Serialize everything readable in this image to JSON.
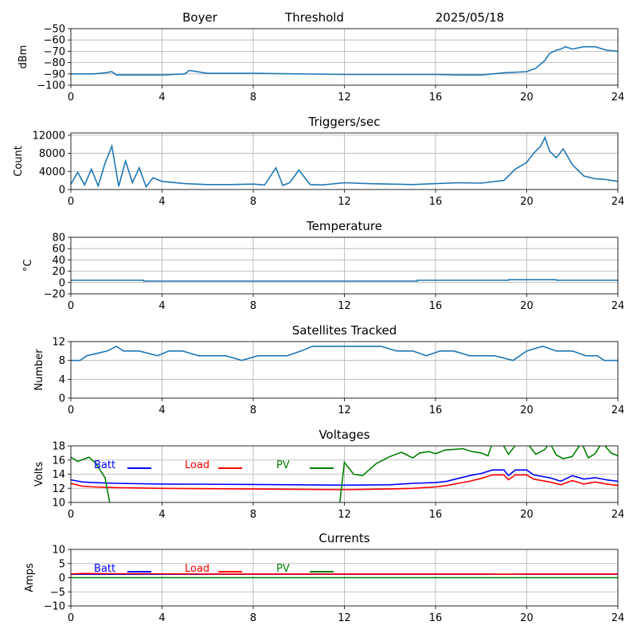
{
  "header": {
    "station": "Boyer",
    "mode": "Threshold",
    "date": "2025/05/18"
  },
  "chart_data": [
    {
      "type": "line",
      "title": "",
      "xlabel": "",
      "ylabel": "dBm",
      "xlim": [
        0,
        24
      ],
      "ylim": [
        -100,
        -50
      ],
      "xticks": [
        0,
        4,
        8,
        12,
        16,
        20,
        24
      ],
      "yticks": [
        -100,
        -90,
        -80,
        -70,
        -60,
        -50
      ],
      "grid": true,
      "series": [
        {
          "color": "#1f77b4",
          "x": [
            0,
            1,
            1.5,
            1.8,
            2,
            3,
            4,
            5,
            5.2,
            6,
            8,
            10,
            12,
            14,
            16,
            17,
            18,
            19,
            20,
            20.4,
            20.8,
            21,
            21.3,
            21.5,
            21.7,
            22,
            22.5,
            23,
            23.5,
            24
          ],
          "y": [
            -90,
            -90,
            -89,
            -88,
            -91,
            -91,
            -91,
            -90,
            -87,
            -89.5,
            -89.5,
            -90,
            -90.5,
            -90.5,
            -90.5,
            -91,
            -91,
            -89,
            -88,
            -85,
            -78,
            -72,
            -69,
            -68,
            -66,
            -68,
            -66,
            -66,
            -69,
            -70
          ]
        }
      ]
    },
    {
      "type": "line",
      "title": "Triggers/sec",
      "xlabel": "",
      "ylabel": "Count",
      "xlim": [
        0,
        24
      ],
      "ylim": [
        0,
        12500
      ],
      "xticks": [
        0,
        4,
        8,
        12,
        16,
        20,
        24
      ],
      "yticks": [
        0,
        4000,
        8000,
        12000
      ],
      "grid": true,
      "series": [
        {
          "color": "#1f77b4",
          "x": [
            0,
            0.3,
            0.6,
            0.9,
            1.2,
            1.5,
            1.8,
            2.1,
            2.4,
            2.7,
            3,
            3.3,
            3.6,
            4,
            5,
            6,
            7,
            8,
            8.5,
            9,
            9.3,
            9.6,
            10,
            10.5,
            11,
            12,
            13,
            14,
            15,
            16,
            17,
            18,
            19,
            19.5,
            20,
            20.3,
            20.6,
            20.8,
            21,
            21.3,
            21.6,
            22,
            22.5,
            23,
            23.5,
            24
          ],
          "y": [
            1200,
            3800,
            1000,
            4500,
            800,
            5800,
            9600,
            700,
            6300,
            1500,
            4800,
            600,
            2600,
            1800,
            1300,
            1100,
            1100,
            1200,
            1000,
            4800,
            900,
            1500,
            4300,
            1100,
            1000,
            1500,
            1300,
            1200,
            1100,
            1300,
            1500,
            1400,
            2000,
            4500,
            6000,
            8000,
            9500,
            11500,
            8500,
            7000,
            9000,
            5500,
            3000,
            2400,
            2200,
            1800
          ]
        }
      ]
    },
    {
      "type": "line",
      "title": "Temperature",
      "xlabel": "",
      "ylabel": "°C",
      "xlim": [
        0,
        24
      ],
      "ylim": [
        -20,
        80
      ],
      "xticks": [
        0,
        4,
        8,
        12,
        16,
        20,
        24
      ],
      "yticks": [
        -20,
        0,
        20,
        40,
        60,
        80
      ],
      "grid": true,
      "series": [
        {
          "color": "#1f77b4",
          "x": [
            0,
            3.2,
            3.2,
            15.2,
            15.2,
            19.2,
            19.2,
            21.3,
            21.3,
            24
          ],
          "y": [
            4,
            4,
            2.5,
            2.5,
            4,
            4,
            5,
            5,
            4,
            4
          ]
        }
      ]
    },
    {
      "type": "line",
      "title": "Satellites Tracked",
      "xlabel": "",
      "ylabel": "Number",
      "xlim": [
        0,
        24
      ],
      "ylim": [
        0,
        12
      ],
      "xticks": [
        0,
        4,
        8,
        12,
        16,
        20,
        24
      ],
      "yticks": [
        0,
        4,
        8,
        12
      ],
      "grid": true,
      "series": [
        {
          "color": "#1f77b4",
          "x": [
            0,
            0.4,
            0.7,
            1.6,
            2,
            2.3,
            3,
            3.8,
            4.3,
            4.9,
            5.6,
            6.2,
            6.8,
            7.5,
            8.2,
            8.8,
            9.5,
            10.1,
            10.6,
            11.3,
            12,
            13,
            13.6,
            14.3,
            15,
            15.6,
            16.2,
            16.8,
            17.5,
            18,
            18.6,
            19.4,
            20,
            20.7,
            21.3,
            22,
            22.6,
            23.1,
            23.4,
            24
          ],
          "y": [
            8,
            8,
            9,
            10,
            11,
            10,
            10,
            9,
            10,
            10,
            9,
            9,
            9,
            8,
            9,
            9,
            9,
            10,
            11,
            11,
            11,
            11,
            11,
            10,
            10,
            9,
            10,
            10,
            9,
            9,
            9,
            8,
            10,
            11,
            10,
            10,
            9,
            9,
            8,
            8
          ]
        }
      ]
    },
    {
      "type": "line",
      "title": "Voltages",
      "xlabel": "",
      "ylabel": "Volts",
      "xlim": [
        0,
        24
      ],
      "ylim": [
        10,
        18
      ],
      "xticks": [
        0,
        4,
        8,
        12,
        16,
        20,
        24
      ],
      "yticks": [
        10,
        12,
        14,
        16,
        18
      ],
      "grid": true,
      "legend": "upper-left",
      "series": [
        {
          "name": "Batt",
          "color": "#0000ff",
          "x": [
            0,
            0.5,
            1,
            2,
            4,
            8,
            12,
            14,
            15,
            16,
            16.5,
            17,
            17.5,
            18,
            18.5,
            19,
            19.2,
            19.5,
            20,
            20.3,
            21,
            21.5,
            22,
            22.5,
            23,
            23.5,
            24
          ],
          "y": [
            13.2,
            12.9,
            12.8,
            12.7,
            12.6,
            12.55,
            12.45,
            12.5,
            12.7,
            12.8,
            13.0,
            13.4,
            13.8,
            14.1,
            14.6,
            14.6,
            13.8,
            14.6,
            14.6,
            13.9,
            13.5,
            13.0,
            13.8,
            13.3,
            13.5,
            13.2,
            13.0
          ]
        },
        {
          "name": "Load",
          "color": "#ff0000",
          "x": [
            0,
            0.5,
            1,
            2,
            4,
            8,
            12,
            14,
            15,
            16,
            16.5,
            17,
            17.5,
            18,
            18.5,
            19,
            19.2,
            19.5,
            20,
            20.3,
            21,
            21.5,
            22,
            22.5,
            23,
            23.5,
            24
          ],
          "y": [
            12.7,
            12.3,
            12.2,
            12.1,
            12.0,
            11.9,
            11.8,
            11.9,
            12.0,
            12.2,
            12.4,
            12.7,
            13.0,
            13.4,
            13.9,
            13.9,
            13.2,
            13.9,
            13.9,
            13.3,
            12.9,
            12.5,
            13.1,
            12.6,
            12.9,
            12.6,
            12.4
          ]
        },
        {
          "name": "PV",
          "color": "#008000",
          "x": [
            0,
            0.3,
            0.8,
            1.1,
            1.5,
            1.7,
            1.75,
            11.7,
            11.8,
            12,
            12.4,
            12.8,
            13.4,
            14,
            14.5,
            15,
            15.3,
            15.7,
            16,
            16.4,
            16.8,
            17.2,
            17.6,
            18,
            18.3,
            18.5,
            18.9,
            19.2,
            19.6,
            20,
            20.4,
            20.8,
            21,
            21.3,
            21.6,
            22,
            22.4,
            22.7,
            23,
            23.3,
            23.7,
            24
          ],
          "y": [
            16.4,
            15.8,
            16.4,
            15.5,
            13.5,
            10,
            9.5,
            9.5,
            10,
            15.7,
            14,
            13.8,
            15.5,
            16.5,
            17.1,
            16.3,
            17.0,
            17.2,
            16.9,
            17.4,
            17.5,
            17.6,
            17.2,
            17.0,
            16.6,
            18.5,
            18.5,
            16.8,
            18.5,
            18.5,
            16.8,
            17.5,
            18.5,
            16.7,
            16.2,
            16.5,
            18.5,
            16.3,
            16.9,
            18.5,
            17.0,
            16.6
          ]
        }
      ]
    },
    {
      "type": "line",
      "title": "Currents",
      "xlabel": "",
      "ylabel": "Amps",
      "xlim": [
        0,
        24
      ],
      "ylim": [
        -10,
        10
      ],
      "xticks": [
        0,
        4,
        8,
        12,
        16,
        20,
        24
      ],
      "yticks": [
        -10,
        -5,
        0,
        5,
        10
      ],
      "grid": true,
      "legend": "upper-left",
      "series": [
        {
          "name": "Batt",
          "color": "#0000ff",
          "x": [
            0,
            24
          ],
          "y": [
            1.2,
            1.2
          ]
        },
        {
          "name": "Load",
          "color": "#ff0000",
          "x": [
            0,
            0.5,
            2,
            6,
            12,
            18,
            19,
            20,
            22,
            24
          ],
          "y": [
            1.3,
            1.5,
            1.4,
            1.3,
            1.3,
            1.3,
            1.2,
            1.3,
            1.3,
            1.3
          ]
        },
        {
          "name": "PV",
          "color": "#008000",
          "x": [
            0,
            24
          ],
          "y": [
            0,
            0
          ]
        }
      ]
    }
  ]
}
